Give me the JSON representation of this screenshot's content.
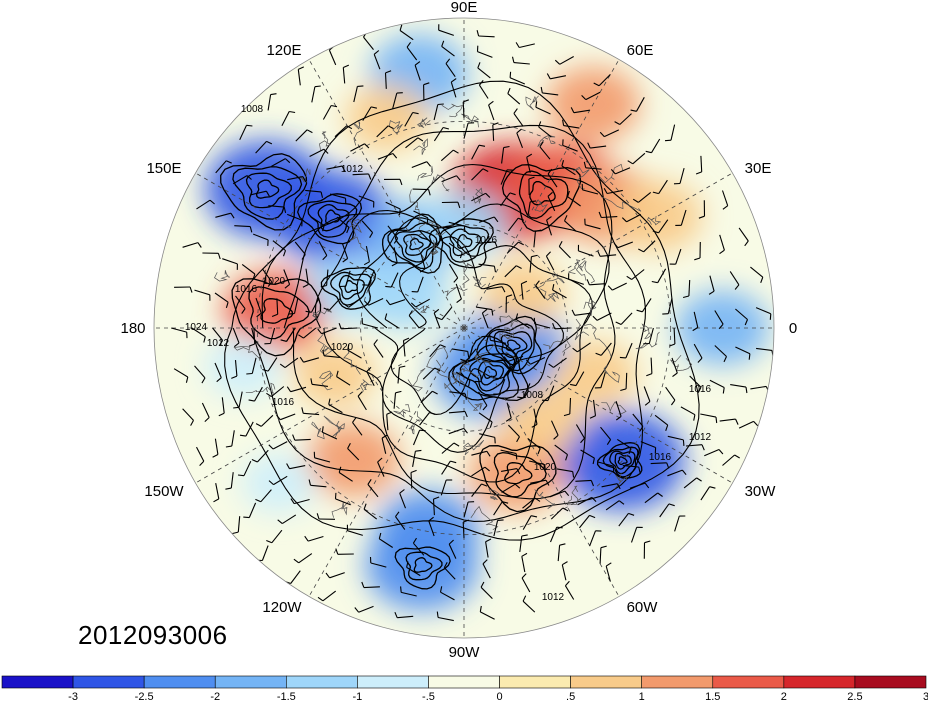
{
  "date_label": "2012093006",
  "longitude_labels": [
    "90E",
    "60E",
    "30E",
    "0",
    "30W",
    "60W",
    "90W",
    "120W",
    "150W",
    "180",
    "150E",
    "120E"
  ],
  "isobar_labels": [
    "1008",
    "1012",
    "1016",
    "1020",
    "1024",
    "1016",
    "1012",
    "1016",
    "1020",
    "1008",
    "1016",
    "1020",
    "1012",
    "1016",
    "1012"
  ],
  "colorbar": {
    "tick_labels": [
      "-3",
      "-2.5",
      "-2",
      "-1.5",
      "-1",
      "-.5",
      "0",
      ".5",
      "1",
      "1.5",
      "2",
      "2.5",
      "3"
    ],
    "colors": [
      "#1a12c8",
      "#2f55e6",
      "#4f8ef0",
      "#74b4f5",
      "#9fd6fa",
      "#cdeefb",
      "#f8fbe6",
      "#fbebb0",
      "#f8cb8a",
      "#f29a6c",
      "#ea5a48",
      "#d6262b",
      "#a80c1f"
    ]
  },
  "shading": [
    {
      "lon": 70,
      "lat": 48,
      "v": 2.7
    },
    {
      "lon": 55,
      "lat": 40,
      "v": 2.2
    },
    {
      "lon": 40,
      "lat": 35,
      "v": 1.6
    },
    {
      "lon": 30,
      "lat": 25,
      "v": 1.2
    },
    {
      "lon": 100,
      "lat": 15,
      "v": -1.6
    },
    {
      "lon": 110,
      "lat": 25,
      "v": 1.0
    },
    {
      "lon": 145,
      "lat": 20,
      "v": -2.6
    },
    {
      "lon": 140,
      "lat": 40,
      "v": -2.4
    },
    {
      "lon": 175,
      "lat": 35,
      "v": 1.8
    },
    {
      "lon": 0,
      "lat": 15,
      "v": -1.4
    },
    {
      "lon": -40,
      "lat": 30,
      "v": -2.7
    },
    {
      "lon": -70,
      "lat": 45,
      "v": 1.5
    },
    {
      "lon": -100,
      "lat": 30,
      "v": -1.8
    },
    {
      "lon": -130,
      "lat": 40,
      "v": 1.4
    },
    {
      "lon": -100,
      "lat": 20,
      "v": -2.2
    },
    {
      "lon": -20,
      "lat": 50,
      "v": 1.1
    },
    {
      "lon": 120,
      "lat": 60,
      "v": -1.5
    },
    {
      "lon": -60,
      "lat": 75,
      "v": -2.2
    },
    {
      "lon": -20,
      "lat": 75,
      "v": -1.8
    },
    {
      "lon": 30,
      "lat": 70,
      "v": 1.0
    },
    {
      "lon": 150,
      "lat": 70,
      "v": -1.2
    },
    {
      "lon": -160,
      "lat": 50,
      "v": 0.9
    },
    {
      "lon": 90,
      "lat": 60,
      "v": -1.0
    },
    {
      "lon": -140,
      "lat": 20,
      "v": -0.6
    },
    {
      "lon": 60,
      "lat": 15,
      "v": 1.4
    },
    {
      "lon": -170,
      "lat": 25,
      "v": -0.7
    },
    {
      "lon": 160,
      "lat": 55,
      "v": -1.0
    },
    {
      "lon": -50,
      "lat": 55,
      "v": 0.9
    }
  ]
}
